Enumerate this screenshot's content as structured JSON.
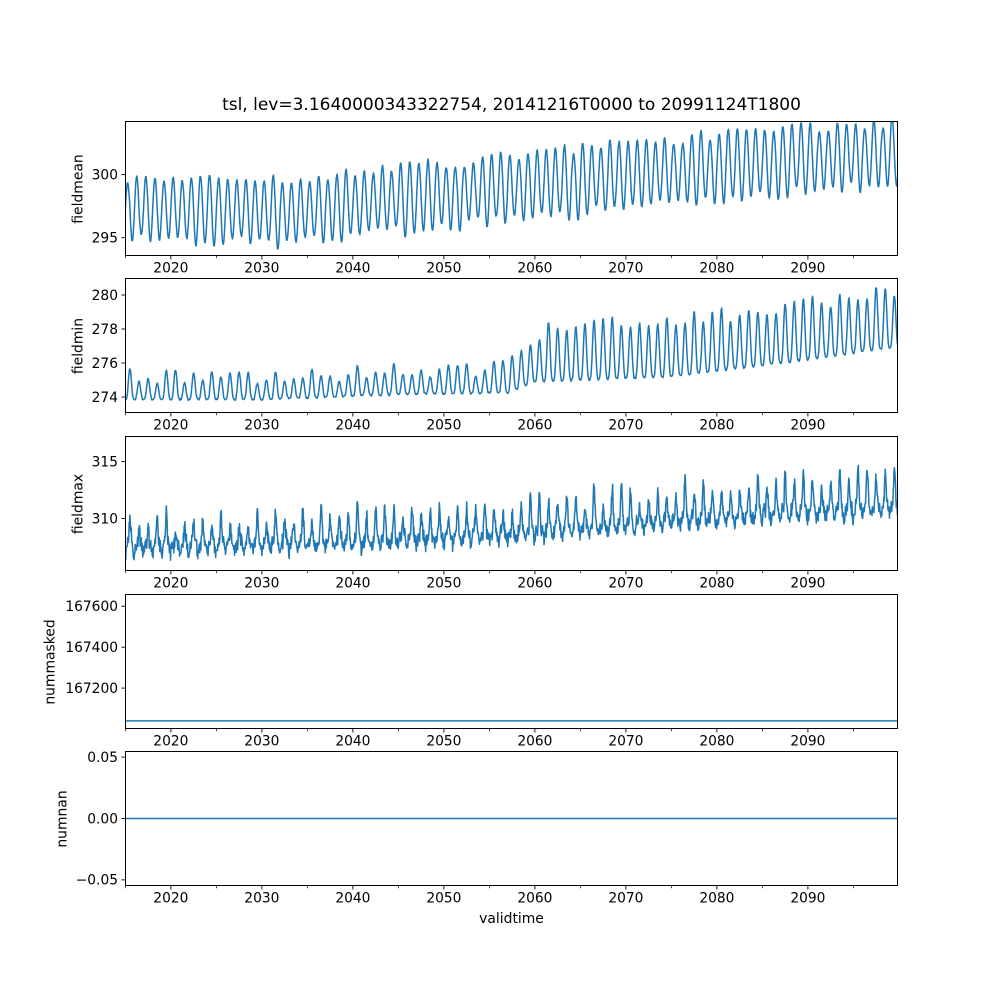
{
  "figure": {
    "title": "tsl, lev=3.1640000343322754, 20141216T0000 to 20991124T1800",
    "variable": "tsl",
    "level": "3.1640000343322754",
    "time_start": "20141216T0000",
    "time_end": "20991124T1800",
    "background_color": "#ffffff",
    "line_color": "#1f77b4",
    "axes_color": "#000000",
    "seed": 20141216
  },
  "x_axis": {
    "label": "validtime",
    "range": [
      2014.96,
      2099.9
    ],
    "major_ticks": [
      2020,
      2030,
      2040,
      2050,
      2060,
      2070,
      2080,
      2090
    ],
    "major_tick_labels": [
      "2020",
      "2030",
      "2040",
      "2050",
      "2060",
      "2070",
      "2080",
      "2090"
    ],
    "minor_ticks": [
      2015,
      2025,
      2035,
      2045,
      2055,
      2065,
      2075,
      2085,
      2095
    ]
  },
  "chart_data": [
    {
      "type": "line",
      "name": "fieldmean",
      "ylabel": "fieldmean",
      "ylim": [
        293.55,
        304.25
      ],
      "yticks": [
        295,
        300
      ],
      "ytick_labels": [
        "295",
        "300"
      ],
      "summary": "Annual cycle oscillating ~295-300 in 2015, rising steadily to ~299-304 by 2099",
      "series": {
        "shape": "sine",
        "period_years": 1,
        "samples_per_year": 16,
        "phase": 0.0,
        "trend": [
          [
            2015,
            297.35
          ],
          [
            2033,
            297.0
          ],
          [
            2045,
            298.0
          ],
          [
            2060,
            299.15
          ],
          [
            2080,
            300.6
          ],
          [
            2099,
            301.7
          ]
        ],
        "amplitude": [
          [
            2015,
            2.4
          ],
          [
            2060,
            2.6
          ],
          [
            2099,
            2.5
          ]
        ],
        "amp_jitter": 0.5,
        "noise": 0.07
      }
    },
    {
      "type": "line",
      "name": "fieldmin",
      "ylabel": "fieldmin",
      "ylim": [
        273.06,
        281.0
      ],
      "yticks": [
        274,
        276,
        278,
        280
      ],
      "ytick_labels": [
        "274",
        "276",
        "278",
        "280"
      ],
      "summary": "Oscillates ~273.8-275.3 until ~2058, then peaks jump upward, reaching ~277-280.5 by the 2090s",
      "series": {
        "shape": "spike",
        "period_years": 1,
        "samples_per_year": 16,
        "sharpness": 1.8,
        "trend": [
          [
            2015,
            273.85
          ],
          [
            2030,
            273.85
          ],
          [
            2045,
            274.15
          ],
          [
            2057,
            274.25
          ],
          [
            2060,
            274.9
          ],
          [
            2075,
            275.2
          ],
          [
            2090,
            276.2
          ],
          [
            2099,
            276.9
          ]
        ],
        "amplitude": [
          [
            2015,
            1.35
          ],
          [
            2057,
            1.45
          ],
          [
            2061,
            3.1
          ],
          [
            2099,
            3.3
          ]
        ],
        "amp_jitter": 0.5,
        "noise": 0.05,
        "secondary_wave": 0
      }
    },
    {
      "type": "line",
      "name": "fieldmax",
      "ylabel": "fieldmax",
      "ylim": [
        305.4,
        317.24
      ],
      "yticks": [
        310,
        315
      ],
      "ytick_labels": [
        "310",
        "315"
      ],
      "summary": "Noisy baseline ~306-309 with sharp annual spikes to ~310-311.5 early, rising to spikes of ~313-316.5 by 2099",
      "series": {
        "shape": "spike",
        "period_years": 1,
        "samples_per_year": 24,
        "sharpness": 6,
        "trend": [
          [
            2015,
            307.3
          ],
          [
            2040,
            307.7
          ],
          [
            2060,
            308.6
          ],
          [
            2080,
            309.9
          ],
          [
            2099,
            310.8
          ]
        ],
        "amplitude": [
          [
            2015,
            2.6
          ],
          [
            2060,
            3.1
          ],
          [
            2099,
            3.7
          ]
        ],
        "amp_jitter": 1.1,
        "noise": 0.6,
        "secondary_wave": 0.35
      }
    },
    {
      "type": "line",
      "name": "nummasked",
      "ylabel": "nummasked",
      "ylim": [
        167000,
        167660
      ],
      "yticks": [
        167200,
        167400,
        167600
      ],
      "ytick_labels": [
        "167200",
        "167400",
        "167600"
      ],
      "summary": "Constant flat line near ~167040 along the bottom of the panel",
      "series": {
        "shape": "constant",
        "value": 167040
      }
    },
    {
      "type": "line",
      "name": "numnan",
      "ylabel": "numnan",
      "ylim": [
        -0.055,
        0.055
      ],
      "yticks": [
        -0.05,
        0.0,
        0.05
      ],
      "ytick_labels": [
        "−0.05",
        "0.00",
        "0.05"
      ],
      "summary": "Constant flat line at exactly 0.00",
      "series": {
        "shape": "constant",
        "value": 0
      }
    }
  ]
}
